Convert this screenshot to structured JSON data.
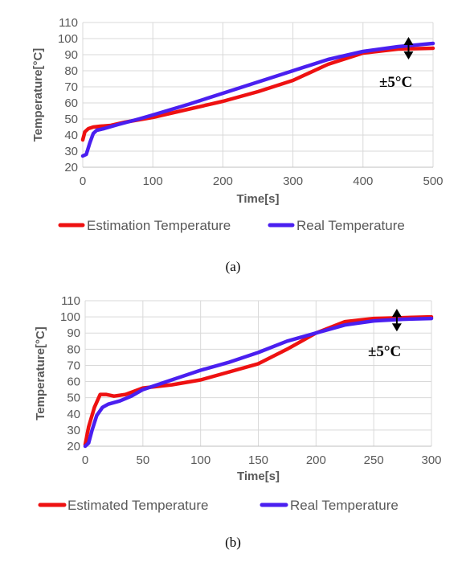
{
  "colors": {
    "estimated": "#ee1111",
    "real": "#4a1ff0",
    "grid": "#d9d9d9",
    "text": "#595959"
  },
  "chart_data": [
    {
      "type": "line",
      "caption": "(a)",
      "annotation": "±5°C",
      "xlabel": "Time[s]",
      "ylabel": "Temperature[°C]",
      "xlim": [
        0,
        500
      ],
      "ylim": [
        20,
        110
      ],
      "xticks": [
        0,
        100,
        200,
        300,
        400,
        500
      ],
      "yticks": [
        20,
        30,
        40,
        50,
        60,
        70,
        80,
        90,
        100,
        110
      ],
      "grid": true,
      "legend": "bottom",
      "annotation_x": 465,
      "annotation_range": [
        89,
        99
      ],
      "series": [
        {
          "name": "Estimation Temperature",
          "color_key": "estimated",
          "x": [
            0,
            3,
            8,
            15,
            25,
            40,
            60,
            80,
            100,
            120,
            150,
            200,
            250,
            300,
            350,
            400,
            450,
            500
          ],
          "y": [
            37,
            42,
            44,
            45,
            45.5,
            46,
            48,
            49.5,
            51,
            53,
            56,
            61,
            67,
            74,
            84,
            91,
            93.5,
            94
          ]
        },
        {
          "name": "Real Temperature",
          "color_key": "real",
          "x": [
            0,
            5,
            10,
            15,
            20,
            30,
            50,
            80,
            100,
            150,
            200,
            250,
            300,
            350,
            400,
            450,
            500
          ],
          "y": [
            27,
            28,
            35,
            41,
            43,
            44,
            46.5,
            50,
            52.5,
            59,
            66,
            73,
            80,
            87,
            92,
            95,
            97
          ]
        }
      ]
    },
    {
      "type": "line",
      "caption": "(b)",
      "annotation": "±5°C",
      "xlabel": "Time[s]",
      "ylabel": "Temperature[°C]",
      "xlim": [
        0,
        300
      ],
      "ylim": [
        20,
        110
      ],
      "xticks": [
        0,
        50,
        100,
        150,
        200,
        250,
        300
      ],
      "yticks": [
        20,
        30,
        40,
        50,
        60,
        70,
        80,
        90,
        100,
        110
      ],
      "grid": true,
      "legend": "bottom",
      "annotation_x": 270,
      "annotation_range": [
        93,
        103
      ],
      "series": [
        {
          "name": "Estimated Temperature",
          "color_key": "estimated",
          "x": [
            0,
            3,
            8,
            13,
            18,
            25,
            35,
            50,
            75,
            100,
            125,
            150,
            175,
            200,
            225,
            250,
            275,
            300
          ],
          "y": [
            21,
            32,
            44,
            52,
            52,
            51,
            52,
            56,
            58,
            61,
            66,
            71,
            80,
            90,
            97,
            99,
            99.5,
            100
          ]
        },
        {
          "name": "Real Temperature",
          "color_key": "real",
          "x": [
            0,
            3,
            6,
            10,
            15,
            20,
            30,
            40,
            50,
            75,
            100,
            125,
            150,
            175,
            200,
            225,
            250,
            275,
            300
          ],
          "y": [
            20,
            22,
            30,
            39,
            44,
            46,
            48,
            51,
            55,
            61,
            67,
            72,
            78,
            85,
            90,
            95,
            97.5,
            98.5,
            99
          ]
        }
      ]
    }
  ]
}
